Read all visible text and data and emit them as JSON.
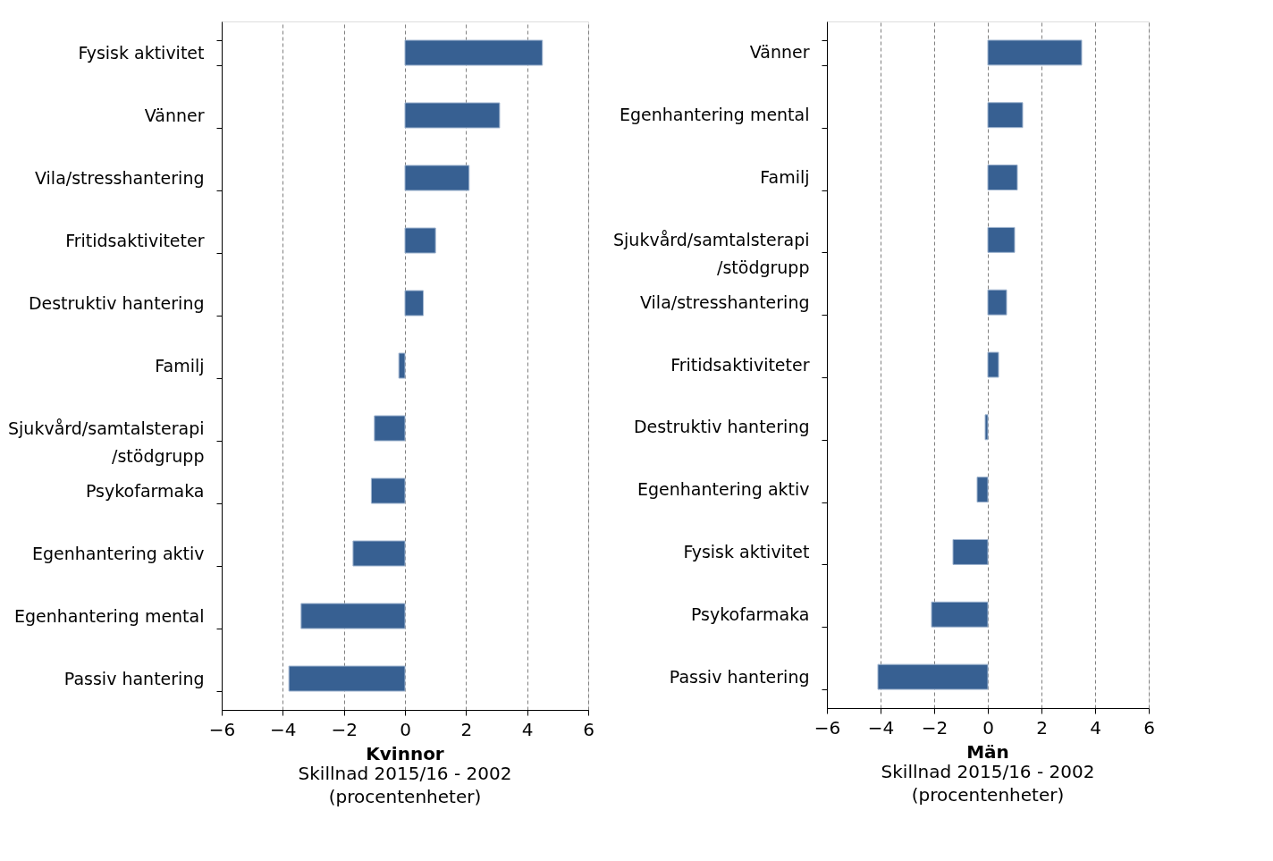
{
  "chart_data": [
    {
      "type": "bar",
      "orientation": "horizontal",
      "title": "Kvinnor",
      "xlabel": "Skillnad 2015/16 - 2002 (procentenheter)",
      "categories": [
        "Fysisk aktivitet",
        "Vänner",
        "Vila/stresshantering",
        "Fritidsaktiviteter",
        "Destruktiv hantering",
        "Familj",
        "Sjukvård/samtalsterapi /stödgrupp",
        "Psykofarmaka",
        "Egenhantering aktiv",
        "Egenhantering mental",
        "Passiv hantering"
      ],
      "values": [
        4.5,
        3.1,
        2.1,
        1.0,
        0.6,
        -0.2,
        -1.0,
        -1.1,
        -1.7,
        -3.4,
        -3.8
      ],
      "color": "#376092",
      "xlim": [
        -6,
        6
      ],
      "xticks": [
        -6,
        -4,
        -2,
        0,
        2,
        4,
        6
      ],
      "grid": "x"
    },
    {
      "type": "bar",
      "orientation": "horizontal",
      "title": "Män",
      "xlabel": "Skillnad 2015/16 - 2002 (procentenheter)",
      "categories": [
        "Vänner",
        "Egenhantering mental",
        "Familj",
        "Sjukvård/samtalsterapi /stödgrupp",
        "Vila/stresshantering",
        "Fritidsaktiviteter",
        "Destruktiv hantering",
        "Egenhantering aktiv",
        "Fysisk aktivitet",
        "Psykofarmaka",
        "Passiv hantering"
      ],
      "values": [
        3.5,
        1.3,
        1.1,
        1.0,
        0.7,
        0.4,
        -0.1,
        -0.4,
        -1.3,
        -2.1,
        -4.1
      ],
      "color": "#376092",
      "xlim": [
        -6,
        6
      ],
      "xticks": [
        -6,
        -4,
        -2,
        0,
        2,
        4,
        6
      ],
      "grid": "x"
    }
  ]
}
